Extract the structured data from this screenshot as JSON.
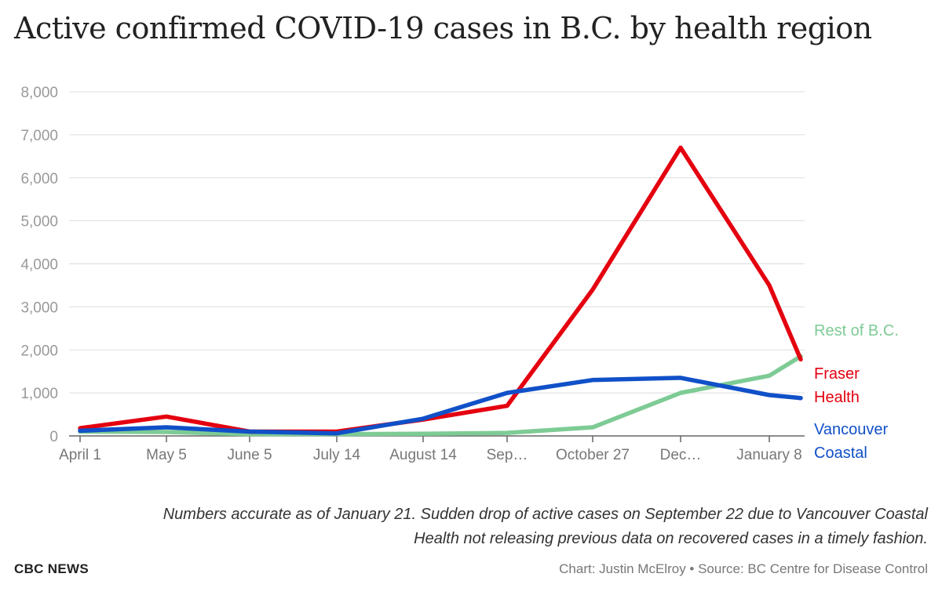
{
  "title": "Active confirmed COVID-19 cases in B.C. by health region",
  "notes": {
    "line1": "Numbers accurate as of January 21. Sudden drop of active cases on September 22 due to Vancouver Coastal",
    "line2": "Health not releasing previous data on recovered cases in a timely fashion."
  },
  "footer": {
    "brand": "CBC NEWS",
    "credit": "Chart: Justin McElroy • Source: BC Centre for Disease Control"
  },
  "chart_data": {
    "type": "line",
    "title": "Active confirmed COVID-19 cases in B.C. by health region",
    "xlabel": "",
    "ylabel": "",
    "x_start_label": "April 1",
    "x_ticks": [
      "April 1",
      "May 5",
      "June 5",
      "July 14",
      "August 14",
      "Sep…",
      "October 27",
      "Dec…",
      "January 8"
    ],
    "y_ticks": [
      "0",
      "1,000",
      "2,000",
      "3,000",
      "4,000",
      "5,000",
      "6,000",
      "7,000",
      "8,000"
    ],
    "ylim": [
      0,
      8000
    ],
    "grid": true,
    "legend_placement": "right, at line ends",
    "series": [
      {
        "name": "Rest of B.C.",
        "label_lines": [
          "Rest of B.C."
        ],
        "color": "#7ecb95",
        "points": [
          [
            "April 1",
            100
          ],
          [
            "May 5",
            90
          ],
          [
            "June 5",
            40
          ],
          [
            "July 14",
            40
          ],
          [
            "August 14",
            50
          ],
          [
            "Sep…",
            70
          ],
          [
            "October 27",
            200
          ],
          [
            "Dec…",
            1000
          ],
          [
            "January 8",
            1400
          ],
          [
            "January 21",
            1850
          ]
        ]
      },
      {
        "name": "Fraser Health",
        "label_lines": [
          "Fraser",
          "Health"
        ],
        "color": "#e4000f",
        "points": [
          [
            "April 1",
            180
          ],
          [
            "May 5",
            450
          ],
          [
            "June 5",
            100
          ],
          [
            "July 14",
            100
          ],
          [
            "August 14",
            380
          ],
          [
            "Sep…",
            700
          ],
          [
            "October 27",
            3400
          ],
          [
            "Dec…",
            6700
          ],
          [
            "January 8",
            3500
          ],
          [
            "January 21",
            1780
          ]
        ]
      },
      {
        "name": "Vancouver Coastal",
        "label_lines": [
          "Vancouver",
          "Coastal"
        ],
        "color": "#1050c8",
        "points": [
          [
            "April 1",
            120
          ],
          [
            "May 5",
            200
          ],
          [
            "June 5",
            100
          ],
          [
            "July 14",
            60
          ],
          [
            "August 14",
            400
          ],
          [
            "Sep…",
            1000
          ],
          [
            "October 27",
            1300
          ],
          [
            "Dec…",
            1350
          ],
          [
            "January 8",
            950
          ],
          [
            "January 21",
            880
          ]
        ]
      }
    ]
  }
}
